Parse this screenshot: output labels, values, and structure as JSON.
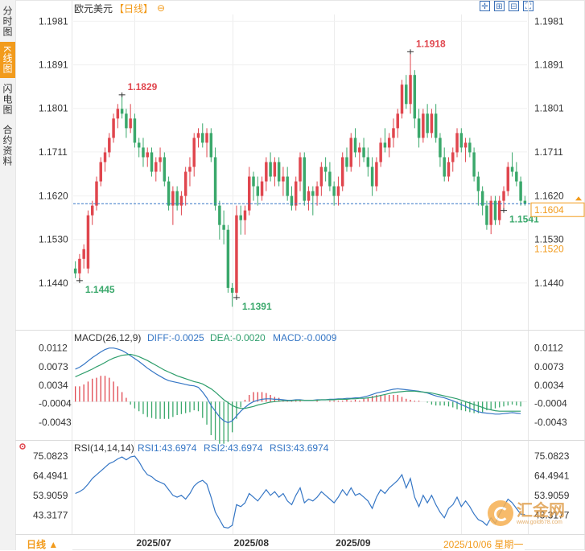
{
  "sidebar": {
    "tabs": [
      {
        "label": "分时图",
        "active": false
      },
      {
        "label": "K线图",
        "active": true
      },
      {
        "label": "闪电图",
        "active": false
      },
      {
        "label": "合约资料",
        "active": false
      }
    ]
  },
  "header": {
    "symbol": "欧元美元",
    "period": "【日线】",
    "zoom_icon": "zoom-circle-icon"
  },
  "toolbar": {
    "icons": [
      "crosshair-icon",
      "zoom-in-icon",
      "zoom-out-icon",
      "fullscreen-icon"
    ]
  },
  "footer": {
    "period_button": "日线 ▲",
    "date_readout": "2025/10/06 星期一",
    "watermark": "汇金网",
    "watermark_sub": "www.gold678.com"
  },
  "colors": {
    "up": "#e0464e",
    "down": "#3aa86b",
    "accent": "#f29b1c",
    "diff": "#3576c5",
    "dea": "#2e9e6c",
    "rsi": "#3576c5"
  },
  "chart_data": [
    {
      "type": "candlestick",
      "title": "欧元美元",
      "y_ticks": [
        "1.1981",
        "1.1891",
        "1.1801",
        "1.1711",
        "1.1620",
        "1.1530",
        "1.1440"
      ],
      "ylim": [
        1.136,
        1.1995
      ],
      "x_ticks": [
        "2025/07",
        "2025/08",
        "2025/09"
      ],
      "current_price": "1.1604",
      "level_label": "1.1520",
      "annotations": [
        {
          "label": "1.1829",
          "index": 11,
          "kind": "high"
        },
        {
          "label": "1.1445",
          "index": 1,
          "kind": "low"
        },
        {
          "label": "1.1391",
          "index": 38,
          "kind": "low"
        },
        {
          "label": "1.1918",
          "index": 79,
          "kind": "high"
        },
        {
          "label": "1.1541",
          "index": 101,
          "kind": "low"
        }
      ],
      "ohlc": [
        [
          1.147,
          1.1485,
          1.145,
          1.146
        ],
        [
          1.146,
          1.15,
          1.1445,
          1.149
        ],
        [
          1.149,
          1.152,
          1.147,
          1.151
        ],
        [
          1.147,
          1.159,
          1.146,
          1.158
        ],
        [
          1.158,
          1.161,
          1.156,
          1.16
        ],
        [
          1.16,
          1.166,
          1.159,
          1.165
        ],
        [
          1.165,
          1.17,
          1.164,
          1.169
        ],
        [
          1.169,
          1.172,
          1.167,
          1.171
        ],
        [
          1.171,
          1.175,
          1.17,
          1.174
        ],
        [
          1.174,
          1.179,
          1.173,
          1.178
        ],
        [
          1.178,
          1.181,
          1.176,
          1.18
        ],
        [
          1.18,
          1.1829,
          1.178,
          1.179
        ],
        [
          1.179,
          1.18,
          1.174,
          1.176
        ],
        [
          1.176,
          1.181,
          1.175,
          1.178
        ],
        [
          1.178,
          1.179,
          1.172,
          1.173
        ],
        [
          1.173,
          1.174,
          1.17,
          1.172
        ],
        [
          1.172,
          1.174,
          1.168,
          1.17
        ],
        [
          1.17,
          1.172,
          1.168,
          1.171
        ],
        [
          1.171,
          1.172,
          1.166,
          1.167
        ],
        [
          1.167,
          1.17,
          1.165,
          1.169
        ],
        [
          1.169,
          1.172,
          1.167,
          1.17
        ],
        [
          1.17,
          1.171,
          1.164,
          1.165
        ],
        [
          1.165,
          1.166,
          1.159,
          1.16
        ],
        [
          1.16,
          1.164,
          1.156,
          1.163
        ],
        [
          1.163,
          1.164,
          1.159,
          1.16
        ],
        [
          1.16,
          1.163,
          1.158,
          1.162
        ],
        [
          1.162,
          1.168,
          1.16,
          1.167
        ],
        [
          1.167,
          1.17,
          1.164,
          1.168
        ],
        [
          1.168,
          1.175,
          1.166,
          1.174
        ],
        [
          1.174,
          1.176,
          1.172,
          1.175
        ],
        [
          1.175,
          1.177,
          1.172,
          1.173
        ],
        [
          1.173,
          1.176,
          1.17,
          1.175
        ],
        [
          1.175,
          1.176,
          1.169,
          1.17
        ],
        [
          1.17,
          1.172,
          1.159,
          1.16
        ],
        [
          1.16,
          1.161,
          1.153,
          1.156
        ],
        [
          1.156,
          1.159,
          1.152,
          1.155
        ],
        [
          1.155,
          1.156,
          1.142,
          1.143
        ],
        [
          1.143,
          1.144,
          1.1391,
          1.142
        ],
        [
          1.142,
          1.16,
          1.141,
          1.158
        ],
        [
          1.158,
          1.16,
          1.154,
          1.157
        ],
        [
          1.157,
          1.16,
          1.154,
          1.159
        ],
        [
          1.159,
          1.168,
          1.158,
          1.166
        ],
        [
          1.166,
          1.167,
          1.161,
          1.164
        ],
        [
          1.164,
          1.166,
          1.16,
          1.162
        ],
        [
          1.162,
          1.166,
          1.161,
          1.165
        ],
        [
          1.165,
          1.17,
          1.163,
          1.169
        ],
        [
          1.169,
          1.171,
          1.165,
          1.166
        ],
        [
          1.166,
          1.17,
          1.164,
          1.169
        ],
        [
          1.169,
          1.17,
          1.164,
          1.165
        ],
        [
          1.165,
          1.168,
          1.162,
          1.166
        ],
        [
          1.166,
          1.168,
          1.161,
          1.162
        ],
        [
          1.162,
          1.164,
          1.159,
          1.16
        ],
        [
          1.16,
          1.166,
          1.159,
          1.165
        ],
        [
          1.165,
          1.171,
          1.163,
          1.17
        ],
        [
          1.17,
          1.171,
          1.16,
          1.161
        ],
        [
          1.161,
          1.164,
          1.159,
          1.163
        ],
        [
          1.163,
          1.164,
          1.158,
          1.162
        ],
        [
          1.162,
          1.165,
          1.16,
          1.164
        ],
        [
          1.164,
          1.169,
          1.162,
          1.168
        ],
        [
          1.168,
          1.17,
          1.165,
          1.167
        ],
        [
          1.167,
          1.169,
          1.163,
          1.164
        ],
        [
          1.164,
          1.165,
          1.16,
          1.162
        ],
        [
          1.162,
          1.166,
          1.16,
          1.164
        ],
        [
          1.164,
          1.171,
          1.163,
          1.17
        ],
        [
          1.17,
          1.172,
          1.167,
          1.168
        ],
        [
          1.168,
          1.175,
          1.167,
          1.174
        ],
        [
          1.174,
          1.176,
          1.17,
          1.171
        ],
        [
          1.171,
          1.173,
          1.168,
          1.172
        ],
        [
          1.172,
          1.174,
          1.169,
          1.17
        ],
        [
          1.17,
          1.172,
          1.166,
          1.168
        ],
        [
          1.168,
          1.17,
          1.162,
          1.164
        ],
        [
          1.164,
          1.17,
          1.163,
          1.169
        ],
        [
          1.169,
          1.174,
          1.168,
          1.173
        ],
        [
          1.173,
          1.176,
          1.171,
          1.172
        ],
        [
          1.172,
          1.175,
          1.17,
          1.174
        ],
        [
          1.174,
          1.178,
          1.172,
          1.176
        ],
        [
          1.176,
          1.18,
          1.174,
          1.179
        ],
        [
          1.179,
          1.186,
          1.178,
          1.185
        ],
        [
          1.185,
          1.187,
          1.18,
          1.181
        ],
        [
          1.181,
          1.1918,
          1.179,
          1.187
        ],
        [
          1.187,
          1.188,
          1.176,
          1.178
        ],
        [
          1.178,
          1.18,
          1.172,
          1.174
        ],
        [
          1.174,
          1.18,
          1.173,
          1.179
        ],
        [
          1.179,
          1.181,
          1.174,
          1.175
        ],
        [
          1.175,
          1.18,
          1.174,
          1.179
        ],
        [
          1.179,
          1.181,
          1.173,
          1.174
        ],
        [
          1.174,
          1.175,
          1.168,
          1.17
        ],
        [
          1.17,
          1.172,
          1.165,
          1.166
        ],
        [
          1.166,
          1.17,
          1.165,
          1.169
        ],
        [
          1.169,
          1.172,
          1.167,
          1.171
        ],
        [
          1.171,
          1.176,
          1.17,
          1.175
        ],
        [
          1.175,
          1.176,
          1.171,
          1.172
        ],
        [
          1.172,
          1.174,
          1.169,
          1.173
        ],
        [
          1.173,
          1.174,
          1.17,
          1.171
        ],
        [
          1.171,
          1.172,
          1.165,
          1.166
        ],
        [
          1.166,
          1.167,
          1.16,
          1.163
        ],
        [
          1.163,
          1.164,
          1.158,
          1.16
        ],
        [
          1.16,
          1.161,
          1.155,
          1.156
        ],
        [
          1.156,
          1.162,
          1.1541,
          1.161
        ],
        [
          1.161,
          1.162,
          1.156,
          1.157
        ],
        [
          1.157,
          1.162,
          1.156,
          1.161
        ],
        [
          1.161,
          1.164,
          1.159,
          1.163
        ],
        [
          1.163,
          1.169,
          1.162,
          1.168
        ],
        [
          1.168,
          1.171,
          1.166,
          1.167
        ],
        [
          1.167,
          1.169,
          1.164,
          1.165
        ],
        [
          1.165,
          1.166,
          1.16,
          1.161
        ],
        [
          1.161,
          1.162,
          1.16,
          1.1604
        ]
      ]
    },
    {
      "type": "line",
      "title": "MACD(26,12,9)",
      "legend": [
        {
          "label": "DIFF:-0.0025",
          "color": "#3576c5"
        },
        {
          "label": "DEA:-0.0020",
          "color": "#2e9e6c"
        },
        {
          "label": "MACD:-0.0009",
          "color": "#3576c5"
        }
      ],
      "y_ticks": [
        "0.0112",
        "0.0073",
        "0.0034",
        "-0.0004",
        "-0.0043"
      ],
      "ylim": [
        -0.0065,
        0.0125
      ],
      "diff": [
        0.0068,
        0.0072,
        0.0078,
        0.0085,
        0.0092,
        0.0098,
        0.0104,
        0.0109,
        0.0112,
        0.0112,
        0.011,
        0.0107,
        0.0102,
        0.0096,
        0.009,
        0.0084,
        0.0077,
        0.007,
        0.0064,
        0.0058,
        0.0053,
        0.0048,
        0.0044,
        0.0042,
        0.004,
        0.0038,
        0.0036,
        0.0034,
        0.0033,
        0.003,
        0.002,
        0.0008,
        -0.0008,
        -0.002,
        -0.0032,
        -0.004,
        -0.0044,
        -0.004,
        -0.003,
        -0.002,
        -0.0012,
        -0.0005,
        0.0,
        0.0003,
        0.0005,
        0.0006,
        0.0006,
        0.0005,
        0.0005,
        0.0004,
        0.0003,
        0.0003,
        0.0004,
        0.0004,
        0.0003,
        0.0003,
        0.0003,
        0.0004,
        0.0004,
        0.0004,
        0.0005,
        0.0005,
        0.0006,
        0.0006,
        0.0007,
        0.0007,
        0.0008,
        0.0008,
        0.001,
        0.0012,
        0.0015,
        0.0018,
        0.002,
        0.0022,
        0.0024,
        0.0026,
        0.0027,
        0.0026,
        0.0025,
        0.0024,
        0.0023,
        0.0022,
        0.002,
        0.0018,
        0.0015,
        0.0012,
        0.001,
        0.0008,
        0.0005,
        0.0002,
        -0.0002,
        -0.0006,
        -0.001,
        -0.0014,
        -0.0018,
        -0.0021,
        -0.0023,
        -0.0024,
        -0.0025,
        -0.0026,
        -0.0026,
        -0.0025,
        -0.0024,
        -0.0023,
        -0.0024,
        -0.0025
      ],
      "dea": [
        0.0052,
        0.0056,
        0.006,
        0.0064,
        0.0068,
        0.0073,
        0.0077,
        0.0082,
        0.0087,
        0.0091,
        0.0094,
        0.0097,
        0.0098,
        0.0099,
        0.0097,
        0.0094,
        0.009,
        0.0086,
        0.0081,
        0.0076,
        0.0071,
        0.0066,
        0.0062,
        0.0058,
        0.0054,
        0.0051,
        0.0048,
        0.0045,
        0.0042,
        0.004,
        0.0037,
        0.0032,
        0.0027,
        0.002,
        0.0012,
        0.0004,
        -0.0002,
        -0.0008,
        -0.0012,
        -0.0014,
        -0.0014,
        -0.0012,
        -0.001,
        -0.0007,
        -0.0005,
        -0.0003,
        -0.0001,
        0.0,
        0.0001,
        0.0002,
        0.0002,
        0.0002,
        0.0003,
        0.0003,
        0.0003,
        0.0003,
        0.0003,
        0.0003,
        0.0004,
        0.0004,
        0.0004,
        0.0004,
        0.0005,
        0.0005,
        0.0005,
        0.0006,
        0.0006,
        0.0007,
        0.0007,
        0.0008,
        0.0009,
        0.0011,
        0.0013,
        0.0015,
        0.0017,
        0.0019,
        0.002,
        0.0021,
        0.0022,
        0.0022,
        0.0022,
        0.0021,
        0.002,
        0.0019,
        0.0018,
        0.0016,
        0.0014,
        0.0012,
        0.001,
        0.0008,
        0.0006,
        0.0003,
        0.0,
        -0.0003,
        -0.0006,
        -0.0009,
        -0.0012,
        -0.0015,
        -0.0017,
        -0.0019,
        -0.002,
        -0.002,
        -0.002,
        -0.002,
        -0.002,
        -0.002
      ]
    },
    {
      "type": "line",
      "title": "RSI(14,14,14)",
      "legend": [
        {
          "label": "RSI1:43.6974",
          "color": "#3576c5"
        },
        {
          "label": "RSI2:43.6974",
          "color": "#3576c5"
        },
        {
          "label": "RSI3:43.6974",
          "color": "#3576c5"
        }
      ],
      "y_ticks": [
        "75.0823",
        "64.4941",
        "53.9059",
        "43.3177"
      ],
      "ylim": [
        35.0,
        78.0
      ],
      "rsi": [
        55.0,
        56.0,
        57.5,
        60.0,
        63.0,
        65.0,
        67.0,
        69.0,
        71.0,
        72.0,
        73.5,
        74.5,
        73.0,
        74.5,
        75.0,
        72.0,
        68.0,
        65.0,
        64.0,
        62.0,
        61.0,
        60.0,
        57.0,
        54.0,
        53.0,
        54.0,
        52.0,
        55.0,
        59.0,
        61.0,
        62.0,
        60.0,
        53.0,
        45.0,
        41.0,
        37.0,
        36.5,
        38.0,
        49.0,
        48.0,
        50.0,
        55.0,
        53.0,
        51.0,
        54.0,
        57.0,
        54.0,
        56.0,
        53.0,
        55.0,
        51.0,
        49.0,
        54.0,
        58.0,
        50.0,
        52.0,
        51.0,
        53.0,
        56.0,
        54.0,
        52.0,
        50.0,
        53.0,
        57.0,
        54.0,
        58.0,
        54.0,
        55.0,
        53.0,
        51.0,
        47.0,
        53.0,
        57.0,
        55.0,
        58.0,
        60.0,
        62.0,
        65.0,
        58.0,
        63.0,
        53.0,
        48.0,
        54.0,
        50.0,
        54.0,
        49.0,
        45.0,
        42.0,
        47.0,
        49.0,
        53.0,
        48.0,
        51.0,
        48.0,
        44.0,
        41.0,
        40.0,
        38.0,
        42.0,
        39.0,
        44.0,
        48.0,
        52.0,
        50.0,
        47.0,
        44.0,
        43.7
      ]
    }
  ]
}
